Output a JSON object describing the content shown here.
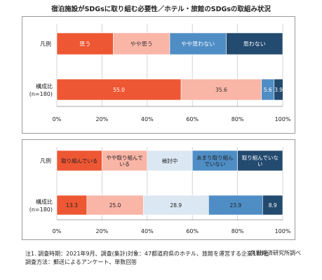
{
  "title": "宿泊施設がSDGsに取り組む必要性／ホテル・旅館のSDGsの取組み状況",
  "source_label": "矢野経済研究所調べ",
  "notes": [
    "注1. 調査時期：2021年9月、調査(集計)対象：47都道府県のホテル、旅館を運営する企業180社",
    "調査方法：郵送によるアンケート、単数回答"
  ],
  "chart_data": [
    {
      "type": "bar",
      "orientation": "horizontal",
      "stacked": true,
      "xlim": [
        0,
        100
      ],
      "tick_labels": [
        "0%",
        "20%",
        "40%",
        "60%",
        "80%",
        "100%"
      ],
      "legend_row_label": "凡例",
      "row_label_lines": [
        "構成比",
        "(n=180)"
      ],
      "series": [
        {
          "name": "思う",
          "values": [
            55.0
          ],
          "data_label": "55.0",
          "color": "#ee5733",
          "text_color": "#ffffff"
        },
        {
          "name": "やや思う",
          "values": [
            35.6
          ],
          "data_label": "35.6",
          "color": "#f9b5a6",
          "text_color": "#333333"
        },
        {
          "name": "やや思わない",
          "values": [
            5.6
          ],
          "data_label": "5.6",
          "color": "#4f8dc5",
          "text_color": "#ffffff"
        },
        {
          "name": "思わない",
          "values": [
            3.9
          ],
          "data_label": "3.9",
          "color": "#234a6f",
          "text_color": "#ffffff"
        }
      ]
    },
    {
      "type": "bar",
      "orientation": "horizontal",
      "stacked": true,
      "xlim": [
        0,
        100
      ],
      "tick_labels": [
        "0%",
        "20%",
        "40%",
        "60%",
        "80%",
        "100%"
      ],
      "legend_row_label": "凡例",
      "row_label_lines": [
        "構成比",
        "(n=180)"
      ],
      "series": [
        {
          "name": "取り組んでいる",
          "values": [
            13.3
          ],
          "data_label": "13.3",
          "color": "#ee5733",
          "text_color": "#222222"
        },
        {
          "name": "やや取り組んでいる",
          "values": [
            25.0
          ],
          "data_label": "25.0",
          "color": "#f9b5a6",
          "text_color": "#222222"
        },
        {
          "name": "検討中",
          "values": [
            28.9
          ],
          "data_label": "28.9",
          "color": "#dbe7f2",
          "text_color": "#222222"
        },
        {
          "name": "あまり取り組んでいない",
          "values": [
            23.9
          ],
          "data_label": "23.9",
          "color": "#4f8dc5",
          "text_color": "#222222"
        },
        {
          "name": "取り組んでいない",
          "values": [
            8.9
          ],
          "data_label": "8.9",
          "color": "#234a6f",
          "text_color": "#ffffff"
        }
      ]
    }
  ]
}
